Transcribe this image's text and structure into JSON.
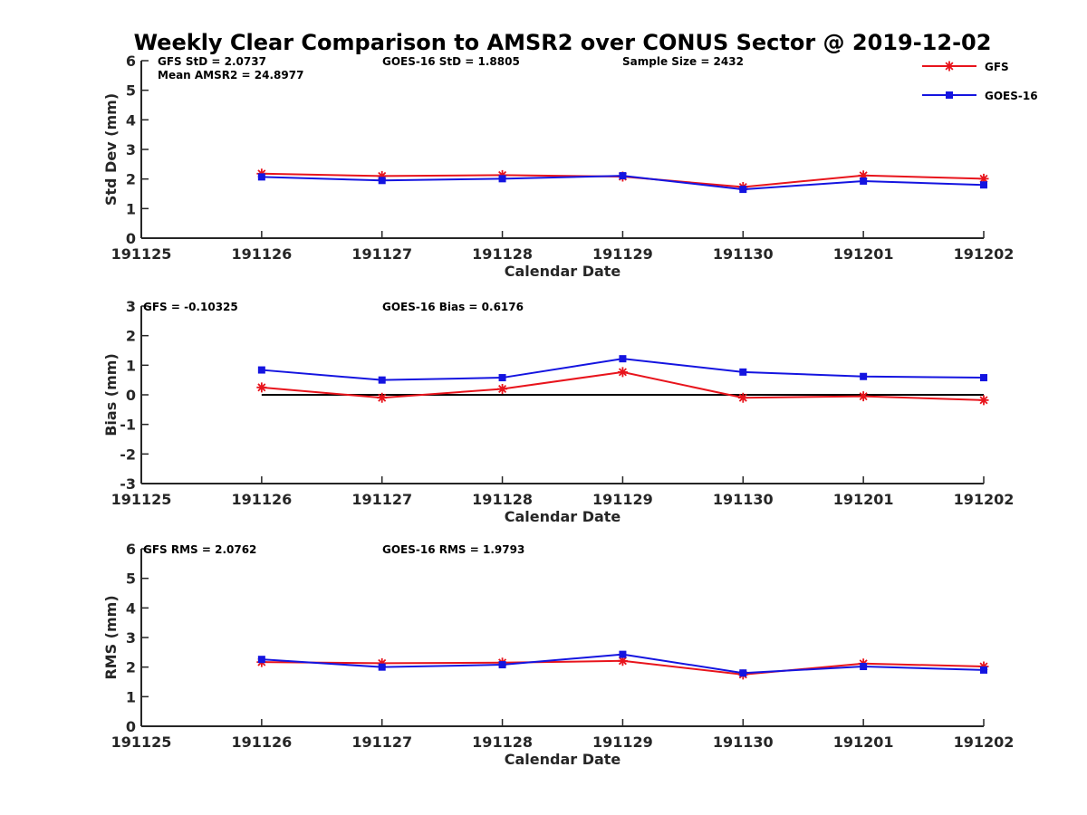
{
  "figure_title": "Weekly Clear Comparison to AMSR2 over CONUS Sector @ 2019-12-02",
  "legend": [
    {
      "name": "GFS",
      "color": "#e8141c",
      "marker": "star"
    },
    {
      "name": "GOES-16",
      "color": "#1414e0",
      "marker": "square"
    }
  ],
  "chart_data": [
    {
      "type": "line",
      "xlabel": "Calendar Date",
      "ylabel": "Std Dev (mm)",
      "x_ticks": [
        "191125",
        "191126",
        "191127",
        "191128",
        "191129",
        "191130",
        "191201",
        "191202"
      ],
      "ylim": [
        0,
        6
      ],
      "y_ticks": [
        "0",
        "1",
        "2",
        "3",
        "4",
        "5",
        "6"
      ],
      "zero_line": false,
      "annotations": {
        "left": "GFS StD = 2.0737",
        "left2": "Mean AMSR2 = 24.8977",
        "mid": "GOES-16 StD = 1.8805",
        "right": "Sample Size = 2432"
      },
      "x": [
        "191126",
        "191127",
        "191128",
        "191129",
        "191130",
        "191201",
        "191202"
      ],
      "series": [
        {
          "name": "GFS",
          "values": [
            2.18,
            2.1,
            2.13,
            2.08,
            1.73,
            2.12,
            2.01
          ]
        },
        {
          "name": "GOES-16",
          "values": [
            2.07,
            1.95,
            2.01,
            2.11,
            1.65,
            1.93,
            1.8
          ]
        }
      ]
    },
    {
      "type": "line",
      "xlabel": "Calendar Date",
      "ylabel": "Bias (mm)",
      "x_ticks": [
        "191125",
        "191126",
        "191127",
        "191128",
        "191129",
        "191130",
        "191201",
        "191202"
      ],
      "ylim": [
        -3,
        3
      ],
      "y_ticks": [
        "-3",
        "-2",
        "-1",
        "0",
        "1",
        "2",
        "3"
      ],
      "zero_line": true,
      "annotations": {
        "left": "GFS = -0.10325",
        "mid": "GOES-16 Bias  = 0.6176"
      },
      "x": [
        "191126",
        "191127",
        "191128",
        "191129",
        "191130",
        "191201",
        "191202"
      ],
      "series": [
        {
          "name": "GFS",
          "values": [
            0.25,
            -0.1,
            0.2,
            0.77,
            -0.1,
            -0.05,
            -0.18
          ]
        },
        {
          "name": "GOES-16",
          "values": [
            0.84,
            0.5,
            0.58,
            1.22,
            0.77,
            0.62,
            0.58
          ]
        }
      ]
    },
    {
      "type": "line",
      "xlabel": "Calendar Date",
      "ylabel": "RMS (mm)",
      "x_ticks": [
        "191125",
        "191126",
        "191127",
        "191128",
        "191129",
        "191130",
        "191201",
        "191202"
      ],
      "ylim": [
        0,
        6
      ],
      "y_ticks": [
        "0",
        "1",
        "2",
        "3",
        "4",
        "5",
        "6"
      ],
      "zero_line": false,
      "annotations": {
        "left": "GFS RMS = 2.0762",
        "mid": "GOES-16 RMS = 1.9793"
      },
      "x": [
        "191126",
        "191127",
        "191128",
        "191129",
        "191130",
        "191201",
        "191202"
      ],
      "series": [
        {
          "name": "GFS",
          "values": [
            2.17,
            2.13,
            2.15,
            2.21,
            1.75,
            2.12,
            2.02
          ]
        },
        {
          "name": "GOES-16",
          "values": [
            2.26,
            2.0,
            2.08,
            2.43,
            1.8,
            2.02,
            1.9
          ]
        }
      ]
    }
  ]
}
